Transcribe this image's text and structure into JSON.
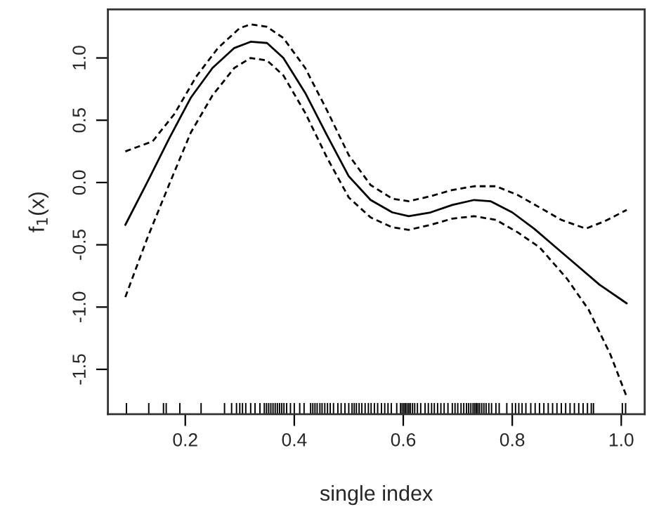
{
  "chart_data": {
    "type": "line",
    "xlabel": "single index",
    "ylabel": "f$_{1}$(x)",
    "xlim": [
      0.058,
      1.043
    ],
    "ylim": [
      -1.86,
      1.39
    ],
    "xticks": [
      0.2,
      0.4,
      0.6,
      0.8,
      {
        "value": 1.0,
        "label": "1.0"
      }
    ],
    "yticks": [
      -1.5,
      {
        "value": -1.0,
        "label": "-1.0"
      },
      -0.5,
      {
        "value": 0.0,
        "label": "0.0"
      },
      0.5,
      {
        "value": 1.0,
        "label": "1.0"
      }
    ],
    "grid": false,
    "series": [
      {
        "color": "#000000",
        "line_style": "solid",
        "x": [
          0.09,
          0.13,
          0.17,
          0.21,
          0.25,
          0.29,
          0.32,
          0.35,
          0.38,
          0.42,
          0.46,
          0.5,
          0.54,
          0.58,
          0.61,
          0.65,
          0.69,
          0.73,
          0.76,
          0.8,
          0.84,
          0.88,
          0.92,
          0.96,
          1.01
        ],
        "values": [
          -0.34,
          0.0,
          0.35,
          0.68,
          0.92,
          1.08,
          1.13,
          1.12,
          1.0,
          0.72,
          0.38,
          0.05,
          -0.14,
          -0.24,
          -0.27,
          -0.24,
          -0.18,
          -0.14,
          -0.15,
          -0.24,
          -0.37,
          -0.52,
          -0.67,
          -0.82,
          -0.97
        ]
      },
      {
        "color": "#000000",
        "line_style": "dashed",
        "x": [
          0.09,
          0.14,
          0.18,
          0.22,
          0.26,
          0.3,
          0.32,
          0.35,
          0.38,
          0.42,
          0.46,
          0.5,
          0.54,
          0.58,
          0.61,
          0.65,
          0.69,
          0.73,
          0.77,
          0.81,
          0.85,
          0.89,
          0.935,
          0.97,
          1.01
        ],
        "values": [
          0.25,
          0.33,
          0.55,
          0.85,
          1.08,
          1.24,
          1.27,
          1.25,
          1.16,
          0.92,
          0.58,
          0.22,
          -0.02,
          -0.13,
          -0.15,
          -0.11,
          -0.06,
          -0.03,
          -0.03,
          -0.1,
          -0.2,
          -0.3,
          -0.37,
          -0.31,
          -0.22
        ]
      },
      {
        "color": "#000000",
        "line_style": "dashed",
        "x": [
          0.09,
          0.13,
          0.17,
          0.21,
          0.25,
          0.29,
          0.32,
          0.35,
          0.38,
          0.42,
          0.46,
          0.5,
          0.54,
          0.58,
          0.61,
          0.65,
          0.69,
          0.73,
          0.77,
          0.81,
          0.85,
          0.9,
          0.94,
          0.98,
          1.01
        ],
        "values": [
          -0.92,
          -0.45,
          -0.02,
          0.4,
          0.7,
          0.92,
          1.0,
          0.98,
          0.86,
          0.56,
          0.2,
          -0.12,
          -0.28,
          -0.36,
          -0.38,
          -0.34,
          -0.29,
          -0.27,
          -0.3,
          -0.4,
          -0.52,
          -0.77,
          -1.02,
          -1.38,
          -1.72
        ]
      },
      {
        "type": "bar",
        "color": "#000000",
        "base": [
          -1.86,
          -1.86,
          -1.86,
          -1.86,
          -1.86,
          -1.86,
          -1.86,
          -1.86,
          -1.86,
          -1.86,
          -1.86,
          -1.86,
          -1.86,
          -1.86,
          -1.86,
          -1.86,
          -1.86,
          -1.86,
          -1.86,
          -1.86,
          -1.86,
          -1.86,
          -1.86,
          -1.86,
          -1.86,
          -1.86,
          -1.86,
          -1.86,
          -1.86,
          -1.86,
          -1.86,
          -1.86,
          -1.86,
          -1.86,
          -1.86,
          -1.86,
          -1.86,
          -1.86,
          -1.86,
          -1.86,
          -1.86,
          -1.86,
          -1.86,
          -1.86,
          -1.86,
          -1.86,
          -1.86,
          -1.86,
          -1.86,
          -1.86,
          -1.86,
          -1.86,
          -1.86,
          -1.86,
          -1.86,
          -1.86,
          -1.86,
          -1.86,
          -1.86,
          -1.86,
          -1.86,
          -1.86,
          -1.86,
          -1.86,
          -1.86,
          -1.86,
          -1.86,
          -1.86,
          -1.86,
          -1.86,
          -1.86,
          -1.86,
          -1.86,
          -1.86,
          -1.86,
          -1.86,
          -1.86,
          -1.86,
          -1.86,
          -1.86,
          -1.86,
          -1.86,
          -1.86,
          -1.86,
          -1.86,
          -1.86,
          -1.86,
          -1.86,
          -1.86,
          -1.86,
          -1.86,
          -1.86,
          -1.86,
          -1.86,
          -1.86,
          -1.86,
          -1.86,
          -1.86,
          -1.86,
          -1.86,
          -1.86,
          -1.86,
          -1.86,
          -1.86,
          -1.86,
          -1.86,
          -1.86,
          -1.86,
          -1.86,
          -1.86,
          -1.86,
          -1.86,
          -1.86,
          -1.86,
          -1.86,
          -1.86,
          -1.86,
          -1.86,
          -1.86,
          -1.86,
          -1.86,
          -1.86
        ],
        "x": [
          0.092,
          0.133,
          0.16,
          0.165,
          0.19,
          0.229,
          0.272,
          0.285,
          0.294,
          0.3,
          0.305,
          0.311,
          0.32,
          0.328,
          0.337,
          0.345,
          0.349,
          0.353,
          0.357,
          0.361,
          0.365,
          0.369,
          0.373,
          0.377,
          0.381,
          0.386,
          0.393,
          0.4,
          0.41,
          0.418,
          0.43,
          0.434,
          0.438,
          0.442,
          0.447,
          0.451,
          0.456,
          0.461,
          0.466,
          0.472,
          0.48,
          0.486,
          0.493,
          0.5,
          0.506,
          0.51,
          0.514,
          0.519,
          0.524,
          0.53,
          0.536,
          0.541,
          0.547,
          0.553,
          0.56,
          0.566,
          0.572,
          0.578,
          0.588,
          0.595,
          0.598,
          0.601,
          0.604,
          0.607,
          0.61,
          0.613,
          0.617,
          0.621,
          0.626,
          0.632,
          0.64,
          0.646,
          0.652,
          0.657,
          0.663,
          0.669,
          0.675,
          0.682,
          0.69,
          0.695,
          0.7,
          0.706,
          0.711,
          0.716,
          0.72,
          0.724,
          0.728,
          0.731,
          0.734,
          0.737,
          0.74,
          0.744,
          0.748,
          0.752,
          0.757,
          0.762,
          0.77,
          0.776,
          0.79,
          0.8,
          0.806,
          0.812,
          0.818,
          0.825,
          0.834,
          0.842,
          0.85,
          0.858,
          0.866,
          0.874,
          0.882,
          0.89,
          0.898,
          0.906,
          0.914,
          0.922,
          0.93,
          0.938,
          0.945,
          0.949,
          1.002,
          1.008
        ],
        "values": [
          0.09,
          0.09,
          0.09,
          0.09,
          0.09,
          0.09,
          0.09,
          0.09,
          0.09,
          0.09,
          0.09,
          0.09,
          0.09,
          0.09,
          0.09,
          0.09,
          0.09,
          0.09,
          0.09,
          0.09,
          0.09,
          0.09,
          0.09,
          0.09,
          0.09,
          0.09,
          0.09,
          0.09,
          0.09,
          0.09,
          0.09,
          0.09,
          0.09,
          0.09,
          0.09,
          0.09,
          0.09,
          0.09,
          0.09,
          0.09,
          0.09,
          0.09,
          0.09,
          0.09,
          0.09,
          0.09,
          0.09,
          0.09,
          0.09,
          0.09,
          0.09,
          0.09,
          0.09,
          0.09,
          0.09,
          0.09,
          0.09,
          0.09,
          0.09,
          0.09,
          0.09,
          0.09,
          0.09,
          0.09,
          0.09,
          0.09,
          0.09,
          0.09,
          0.09,
          0.09,
          0.09,
          0.09,
          0.09,
          0.09,
          0.09,
          0.09,
          0.09,
          0.09,
          0.09,
          0.09,
          0.09,
          0.09,
          0.09,
          0.09,
          0.09,
          0.09,
          0.09,
          0.09,
          0.09,
          0.09,
          0.09,
          0.09,
          0.09,
          0.09,
          0.09,
          0.09,
          0.09,
          0.09,
          0.09,
          0.09,
          0.09,
          0.09,
          0.09,
          0.09,
          0.09,
          0.09,
          0.09,
          0.09,
          0.09,
          0.09,
          0.09,
          0.09,
          0.09,
          0.09,
          0.09,
          0.09,
          0.09,
          0.09,
          0.09,
          0.09,
          0.09,
          0.09
        ]
      }
    ]
  }
}
